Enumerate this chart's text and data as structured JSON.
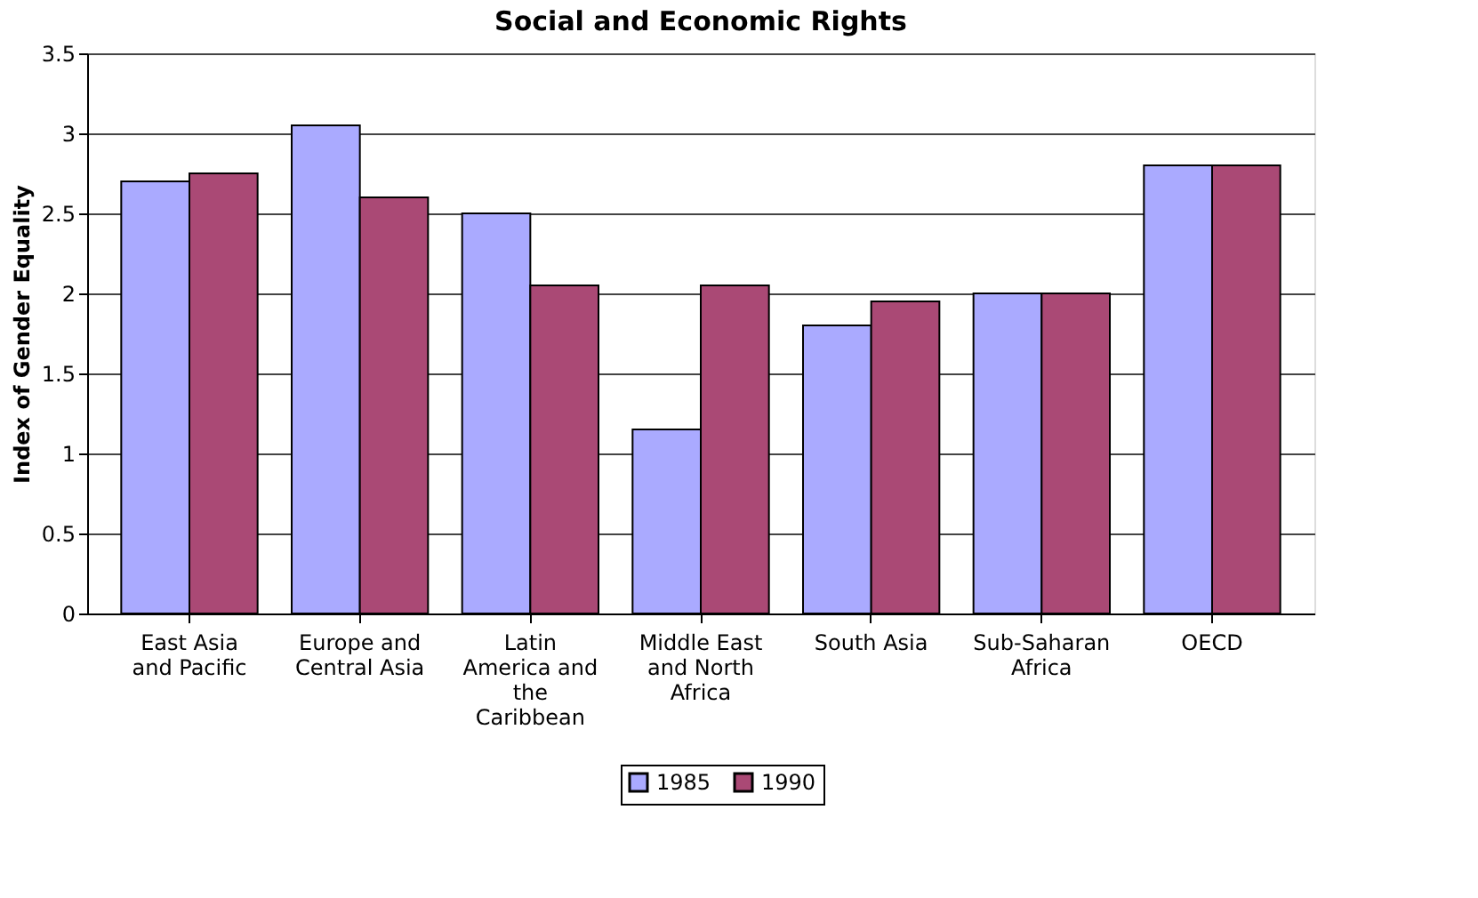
{
  "chart_data": {
    "type": "bar",
    "title": "Social and Economic Rights",
    "ylabel": "Index of Gender Equality",
    "categories": [
      "East Asia and Pacific",
      "Europe and Central Asia",
      "Latin America and the Caribbean",
      "Middle East and North Africa",
      "South Asia",
      "Sub-Saharan Africa",
      "OECD"
    ],
    "series": [
      {
        "name": "1985",
        "color": "#aaaaff",
        "values": [
          2.7,
          3.05,
          2.5,
          1.15,
          1.8,
          2.0,
          2.8
        ]
      },
      {
        "name": "1990",
        "color": "#aa4975",
        "values": [
          2.75,
          2.6,
          2.05,
          2.05,
          1.95,
          2.0,
          2.8
        ]
      }
    ],
    "ylim": [
      0,
      3.5
    ],
    "yticks": [
      0,
      0.5,
      1,
      1.5,
      2,
      2.5,
      3,
      3.5
    ],
    "grid": "y",
    "legend": "bottom"
  }
}
